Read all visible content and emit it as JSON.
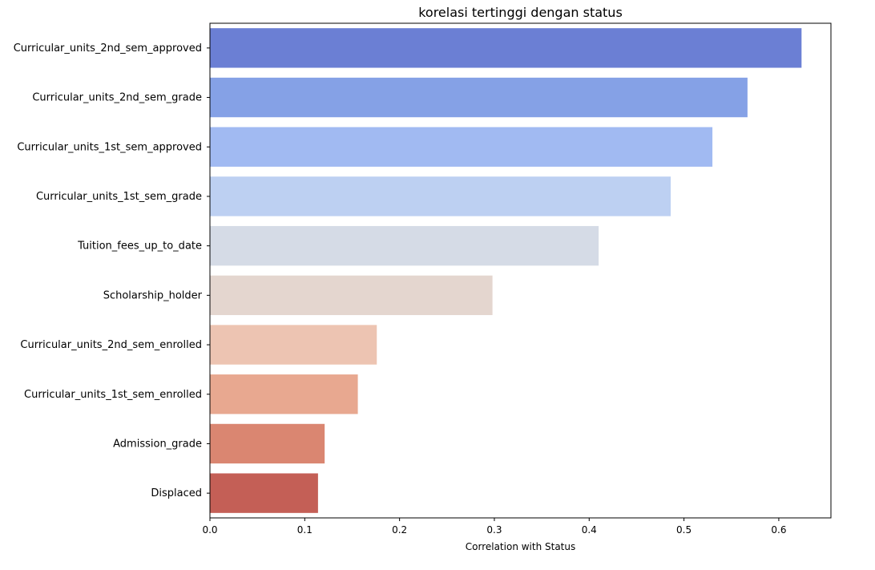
{
  "chart_data": {
    "type": "bar",
    "orientation": "horizontal",
    "title": "korelasi tertinggi dengan status",
    "xlabel": "Correlation with Status",
    "ylabel": "",
    "xlim": [
      0,
      0.655
    ],
    "xticks": [
      "0.0",
      "0.1",
      "0.2",
      "0.3",
      "0.4",
      "0.5",
      "0.6"
    ],
    "categories": [
      "Curricular_units_2nd_sem_approved",
      "Curricular_units_2nd_sem_grade",
      "Curricular_units_1st_sem_approved",
      "Curricular_units_1st_sem_grade",
      "Tuition_fees_up_to_date",
      "Scholarship_holder",
      "Curricular_units_2nd_sem_enrolled",
      "Curricular_units_1st_sem_enrolled",
      "Admission_grade",
      "Displaced"
    ],
    "values": [
      0.624,
      0.567,
      0.53,
      0.486,
      0.41,
      0.298,
      0.176,
      0.156,
      0.121,
      0.114
    ],
    "colors": [
      "#6b7fd4",
      "#85a1e6",
      "#a1baf2",
      "#bdd0f2",
      "#d5dbe6",
      "#e4d6cf",
      "#edc4b2",
      "#e8a890",
      "#da8671",
      "#c45f56"
    ],
    "grid": false,
    "legend": "none"
  }
}
